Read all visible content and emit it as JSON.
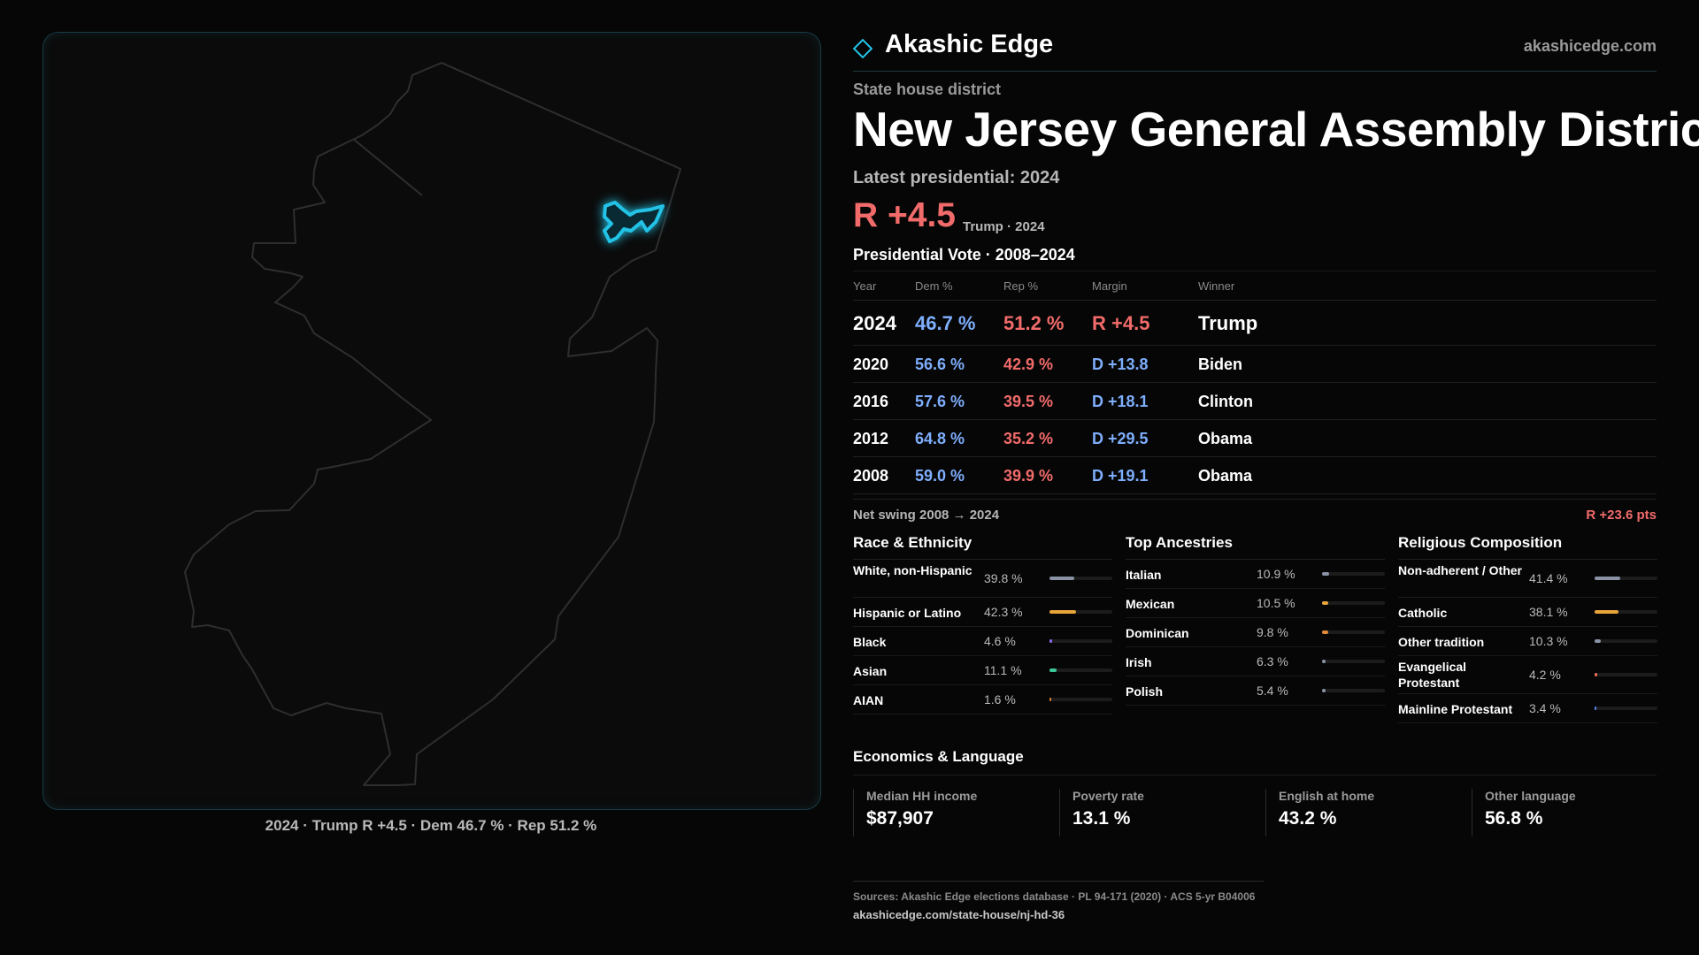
{
  "brand": {
    "name": "Akashic Edge",
    "url": "akashicedge.com"
  },
  "kicker": "State house district",
  "title": "New Jersey General Assembly District",
  "latest_label": "Latest presidential: 2024",
  "headline_margin": "R +4.5",
  "headline_sub": "Trump · 2024",
  "presidential_title": "Presidential Vote · 2008–2024",
  "vote_table": {
    "headers": {
      "year": "Year",
      "dem": "Dem %",
      "rep": "Rep %",
      "margin": "Margin",
      "winner": "Winner"
    },
    "rows": [
      {
        "year": "2024",
        "dem": "46.7 %",
        "rep": "51.2 %",
        "margin": "R +4.5",
        "winner": "Trump"
      },
      {
        "year": "2020",
        "dem": "56.6 %",
        "rep": "42.9 %",
        "margin": "D +13.8",
        "winner": "Biden"
      },
      {
        "year": "2016",
        "dem": "57.6 %",
        "rep": "39.5 %",
        "margin": "D +18.1",
        "winner": "Clinton"
      },
      {
        "year": "2012",
        "dem": "64.8 %",
        "rep": "35.2 %",
        "margin": "D +29.5",
        "winner": "Obama"
      },
      {
        "year": "2008",
        "dem": "59.0 %",
        "rep": "39.9 %",
        "margin": "D +19.1",
        "winner": "Obama"
      }
    ]
  },
  "swing": {
    "label": "Net swing 2008 → 2024",
    "value": "R +23.6 pts"
  },
  "race": {
    "title": "Race & Ethnicity",
    "items": [
      {
        "name": "White, non-Hispanic",
        "pct": "39.8 %",
        "value": 39.8,
        "color": "#8a93a6"
      },
      {
        "name": "Hispanic or Latino",
        "pct": "42.3 %",
        "value": 42.3,
        "color": "#e8a53a"
      },
      {
        "name": "Black",
        "pct": "4.6 %",
        "value": 4.6,
        "color": "#8a6cf0"
      },
      {
        "name": "Asian",
        "pct": "11.1 %",
        "value": 11.1,
        "color": "#3cc99a"
      },
      {
        "name": "AIAN",
        "pct": "1.6 %",
        "value": 1.6,
        "color": "#d9833a"
      }
    ]
  },
  "ancestry": {
    "title": "Top Ancestries",
    "items": [
      {
        "name": "Italian",
        "pct": "10.9 %",
        "value": 10.9,
        "color": "#8a93a6"
      },
      {
        "name": "Mexican",
        "pct": "10.5 %",
        "value": 10.5,
        "color": "#e8a53a"
      },
      {
        "name": "Dominican",
        "pct": "9.8 %",
        "value": 9.8,
        "color": "#e08a3a"
      },
      {
        "name": "Irish",
        "pct": "6.3 %",
        "value": 6.3,
        "color": "#8a93a6"
      },
      {
        "name": "Polish",
        "pct": "5.4 %",
        "value": 5.4,
        "color": "#8a93a6"
      }
    ]
  },
  "religion": {
    "title": "Religious Composition",
    "items": [
      {
        "name": "Non-adherent / Other",
        "pct": "41.4 %",
        "value": 41.4,
        "color": "#8a93a6"
      },
      {
        "name": "Catholic",
        "pct": "38.1 %",
        "value": 38.1,
        "color": "#e8a53a"
      },
      {
        "name": "Other tradition",
        "pct": "10.3 %",
        "value": 10.3,
        "color": "#8a93a6"
      },
      {
        "name": "Evangelical Protestant",
        "pct": "4.2 %",
        "value": 4.2,
        "color": "#f26b5a"
      },
      {
        "name": "Mainline Protestant",
        "pct": "3.4 %",
        "value": 3.4,
        "color": "#5a8af0"
      }
    ]
  },
  "economics": {
    "title": "Economics & Language",
    "items": [
      {
        "label": "Median HH income",
        "value": "$87,907"
      },
      {
        "label": "Poverty rate",
        "value": "13.1 %"
      },
      {
        "label": "English at home",
        "value": "43.2 %"
      },
      {
        "label": "Other language",
        "value": "56.8 %"
      }
    ]
  },
  "map_caption": "2024 · Trump R +4.5 · Dem 46.7 % · Rep 51.2 %",
  "sources": {
    "line1": "Sources: Akashic Edge elections database · PL 94-171 (2020) · ACS 5-yr B04006",
    "line2": "akashicedge.com/state-house/nj-hd-36"
  },
  "colors": {
    "accent": "#22c3e6",
    "rep": "#f26b6b",
    "dem": "#7eaefc"
  }
}
